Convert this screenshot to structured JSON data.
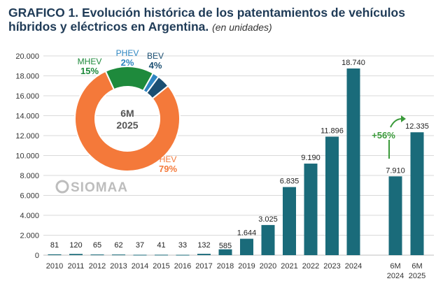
{
  "title": {
    "main": "GRAFICO 1. Evolución histórica de los patentamientos de vehículos híbridos y eléctricos en Argentina.",
    "unit": "(en unidades)"
  },
  "watermark": "SIOMAA",
  "chart_data": [
    {
      "type": "bar",
      "categories": [
        "2010",
        "2011",
        "2012",
        "2013",
        "2014",
        "2015",
        "2016",
        "2017",
        "2018",
        "2019",
        "2020",
        "2021",
        "2022",
        "2023",
        "2024",
        "6M 2024",
        "6M 2025"
      ],
      "values": [
        81,
        120,
        65,
        62,
        37,
        41,
        33,
        132,
        585,
        1644,
        3025,
        6835,
        9190,
        11896,
        18740,
        7910,
        12335
      ],
      "value_labels": [
        "81",
        "120",
        "65",
        "62",
        "37",
        "41",
        "33",
        "132",
        "585",
        "1.644",
        "3.025",
        "6.835",
        "9.190",
        "11.896",
        "18.740",
        "7.910",
        "12.335"
      ],
      "ylim": [
        0,
        20000
      ],
      "yticks": [
        0,
        2000,
        4000,
        6000,
        8000,
        10000,
        12000,
        14000,
        16000,
        18000,
        20000
      ],
      "ytick_labels": [
        "0",
        "2.000",
        "4.000",
        "6.000",
        "8.000",
        "10.000",
        "12.000",
        "14.000",
        "16.000",
        "18.000",
        "20.000"
      ],
      "grid": true,
      "color": "#1a6b7a",
      "annotation": {
        "text": "+56%",
        "color": "#3a9a3a"
      }
    },
    {
      "type": "pie",
      "center_label": [
        "6M",
        "2025"
      ],
      "slices": [
        {
          "name": "HEV",
          "value": 79,
          "label": "79%",
          "color": "#f4793a"
        },
        {
          "name": "MHEV",
          "value": 15,
          "label": "15%",
          "color": "#1e8a3c"
        },
        {
          "name": "PHEV",
          "value": 2,
          "label": "2%",
          "color": "#2e86c1"
        },
        {
          "name": "BEV",
          "value": 4,
          "label": "4%",
          "color": "#1b4f72"
        }
      ]
    }
  ]
}
